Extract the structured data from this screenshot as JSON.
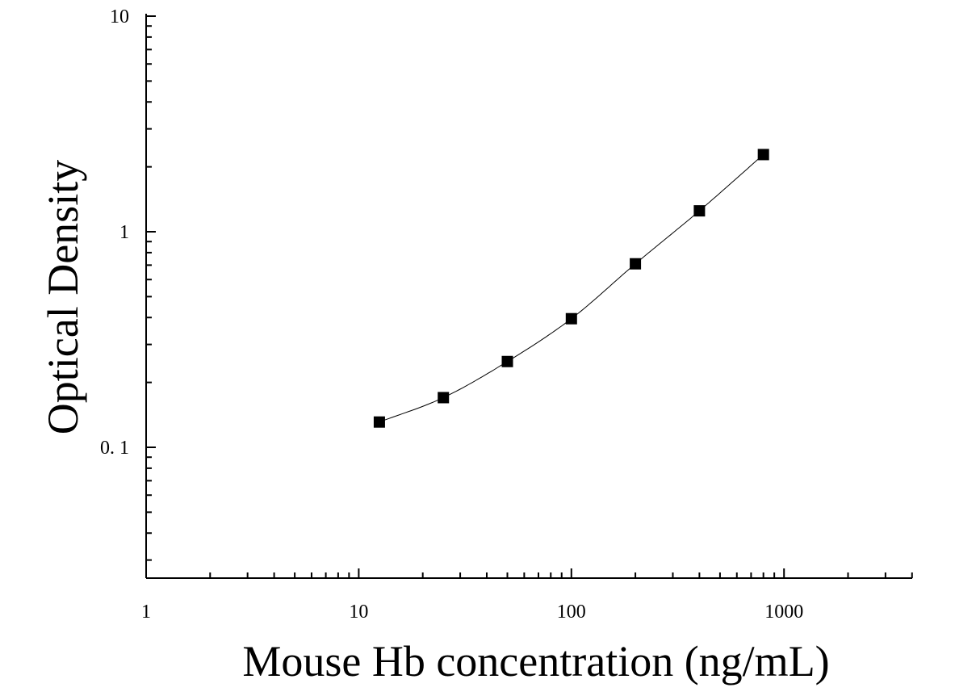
{
  "chart_data": {
    "type": "scatter",
    "xlabel": "Mouse Hb concentration (ng/mL)",
    "ylabel": "Optical Density",
    "x_scale": "log",
    "y_scale": "log",
    "xlim": [
      1,
      4000
    ],
    "ylim": [
      0.03,
      10
    ],
    "x_ticks": [
      {
        "value": 1,
        "label": "1"
      },
      {
        "value": 10,
        "label": "10"
      },
      {
        "value": 100,
        "label": "100"
      },
      {
        "value": 1000,
        "label": "1000"
      }
    ],
    "y_ticks": [
      {
        "value": 0.1,
        "label": "0. 1"
      },
      {
        "value": 1,
        "label": "1"
      },
      {
        "value": 10,
        "label": "10"
      }
    ],
    "grid": false,
    "marker": "square",
    "fit_curve": true,
    "series": [
      {
        "x": [
          12.5,
          25,
          50,
          100,
          200,
          400,
          800
        ],
        "y": [
          0.131,
          0.17,
          0.25,
          0.395,
          0.71,
          1.25,
          2.28
        ]
      }
    ]
  }
}
